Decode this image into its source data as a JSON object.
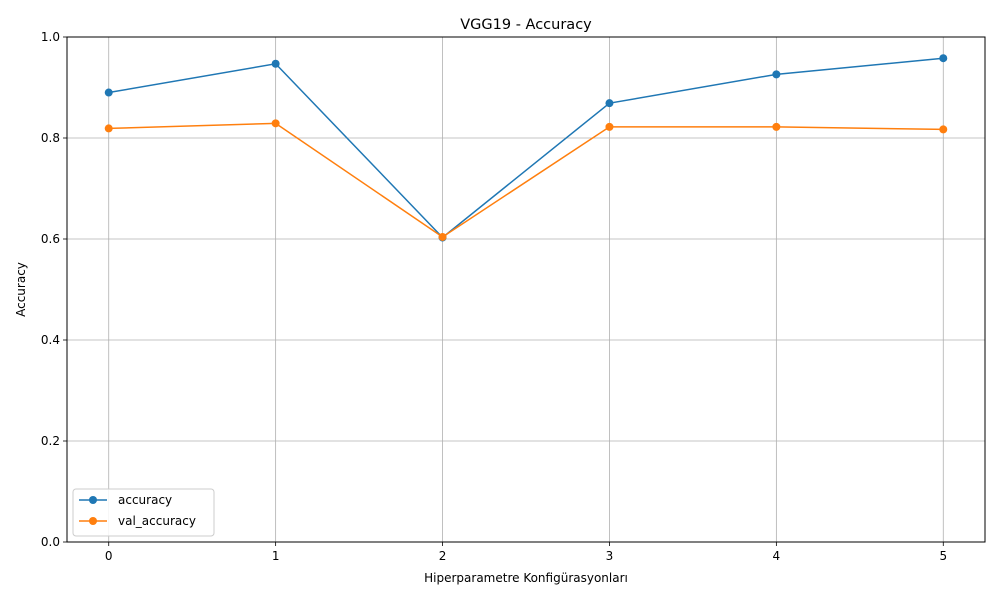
{
  "chart_data": {
    "type": "line",
    "title": "VGG19 - Accuracy",
    "xlabel": "Hiperparametre Konfigürasyonları",
    "ylabel": "Accuracy",
    "x": [
      0,
      1,
      2,
      3,
      4,
      5
    ],
    "x_ticks": [
      "0",
      "1",
      "2",
      "3",
      "4",
      "5"
    ],
    "y_ticks": [
      "0.0",
      "0.2",
      "0.4",
      "0.6",
      "0.8",
      "1.0"
    ],
    "xlim": [
      -0.25,
      5.25
    ],
    "ylim": [
      0.0,
      1.0
    ],
    "grid": true,
    "legend_position": "lower-left",
    "series": [
      {
        "name": "accuracy",
        "color": "#1f77b4",
        "marker": "circle",
        "values": [
          0.89,
          0.947,
          0.603,
          0.869,
          0.926,
          0.958
        ]
      },
      {
        "name": "val_accuracy",
        "color": "#ff7f0e",
        "marker": "circle",
        "values": [
          0.819,
          0.829,
          0.604,
          0.822,
          0.822,
          0.817
        ]
      }
    ]
  }
}
